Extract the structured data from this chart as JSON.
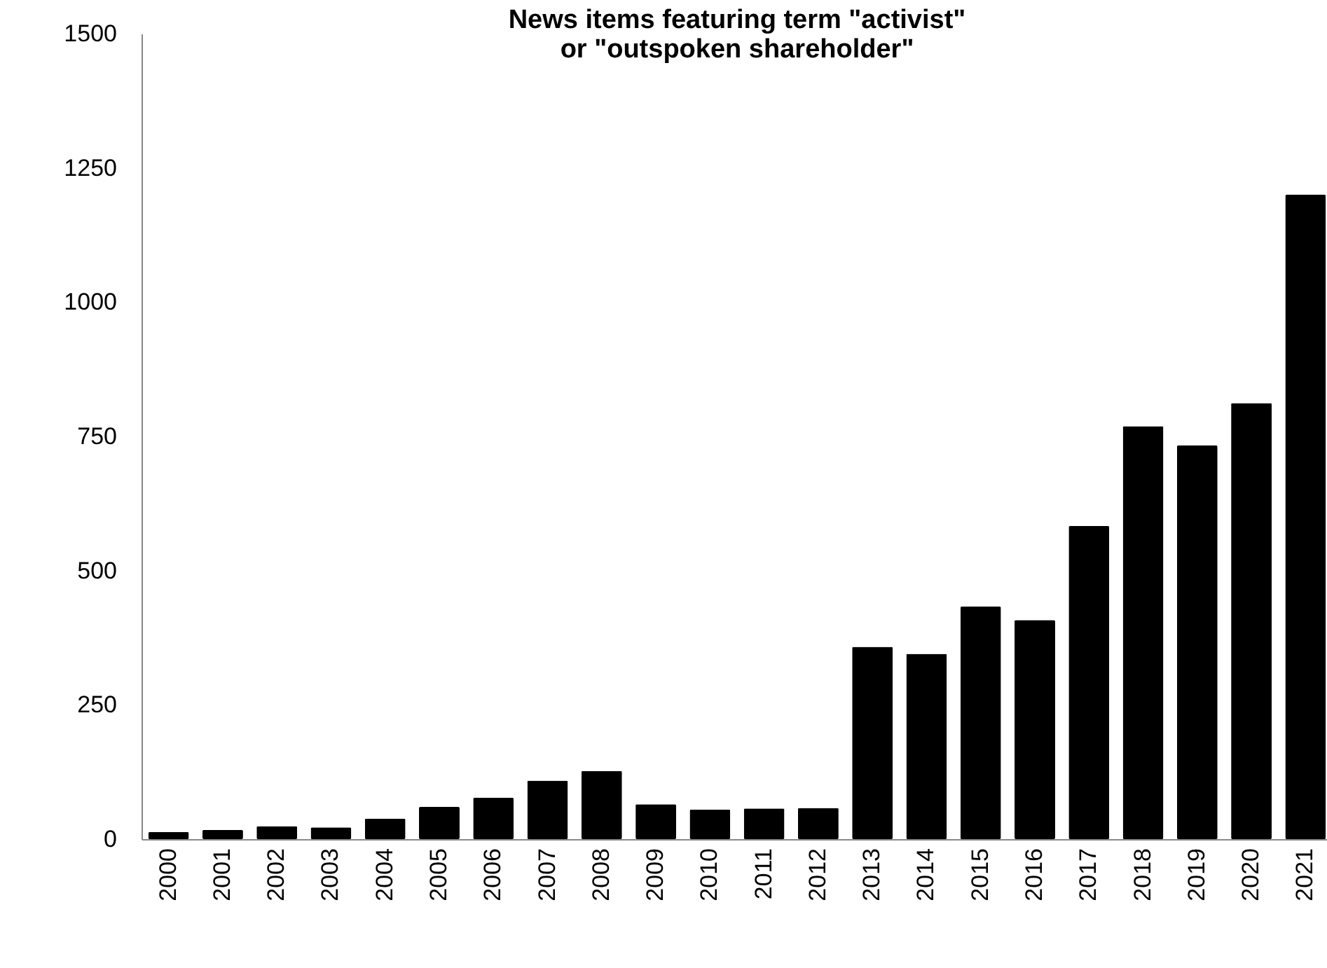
{
  "chart_data": {
    "type": "bar",
    "title": [
      "News items featuring term \"activist\"",
      "or \"outspoken shareholder\""
    ],
    "categories": [
      "2000",
      "2001",
      "2002",
      "2003",
      "2004",
      "2005",
      "2006",
      "2007",
      "2008",
      "2009",
      "2010",
      "2011",
      "2012",
      "2013",
      "2014",
      "2015",
      "2016",
      "2017",
      "2018",
      "2019",
      "2020",
      "2021"
    ],
    "values": [
      13,
      17,
      24,
      22,
      38,
      60,
      77,
      109,
      127,
      65,
      55,
      57,
      58,
      358,
      345,
      433,
      408,
      583,
      769,
      733,
      812,
      1200
    ],
    "color": "#000000",
    "ylim": [
      0,
      1500
    ],
    "yticks": [
      0,
      250,
      500,
      750,
      1000,
      1250,
      1500
    ],
    "grid": false
  }
}
